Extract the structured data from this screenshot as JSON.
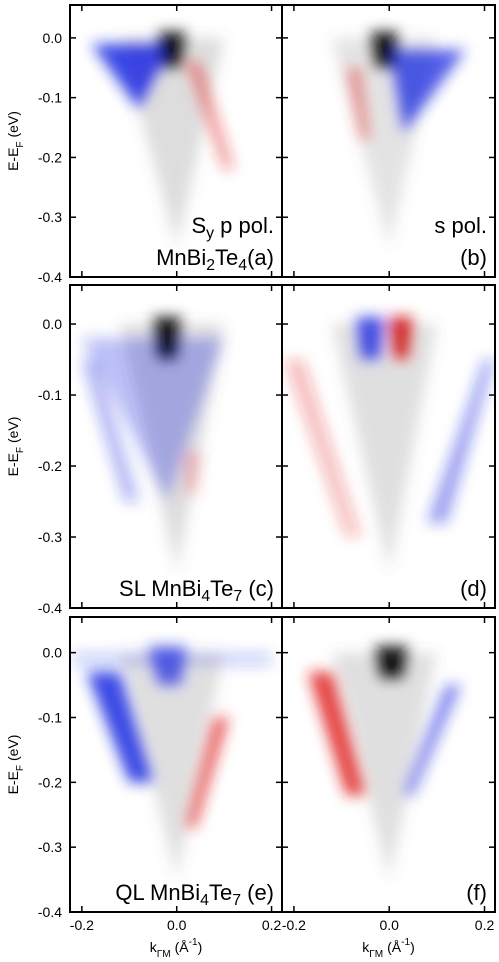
{
  "figure": {
    "ylabel": [
      {
        "text": "E-E"
      },
      {
        "sub": "F"
      },
      {
        "text": " (eV)"
      }
    ],
    "xlabel": [
      {
        "text": "k"
      },
      {
        "sub": "ΓM"
      },
      {
        "text": " (Å"
      },
      {
        "sup": "-1"
      },
      {
        "text": ")"
      }
    ],
    "ylim": [
      0.055,
      -0.4
    ],
    "yticks": [
      {
        "value": 0,
        "label": "0.0"
      },
      -0.1,
      -0.2,
      -0.3,
      -0.4
    ],
    "xlim": [
      -0.225,
      0.222
    ],
    "xticks": [
      -0.2,
      {
        "value": 0,
        "label": "0.0"
      },
      0.2
    ],
    "panels": [
      {
        "lines": [
          [
            {
              "text": "S"
            },
            {
              "sub": "y"
            },
            {
              "text": " p pol."
            }
          ],
          [
            {
              "text": "MnBi"
            },
            {
              "sub": "2"
            },
            {
              "text": "Te"
            },
            {
              "sub": "4"
            },
            {
              "text": "(a)"
            }
          ]
        ]
      },
      {
        "lines": [
          [
            {
              "text": "s pol."
            }
          ],
          [
            {
              "text": "(b)"
            }
          ]
        ]
      },
      {
        "lines": [
          [
            {
              "text": "SL MnBi"
            },
            {
              "sub": "4"
            },
            {
              "text": "Te"
            },
            {
              "sub": "7"
            },
            {
              "text": " (c)"
            }
          ]
        ]
      },
      {
        "lines": [
          [
            {
              "text": "(d)"
            }
          ]
        ]
      },
      {
        "lines": [
          [
            {
              "text": "QL MnBi"
            },
            {
              "sub": "4"
            },
            {
              "text": "Te"
            },
            {
              "sub": "7"
            },
            {
              "text": " (e)"
            }
          ]
        ]
      },
      {
        "lines": [
          [
            {
              "text": "(f)"
            }
          ]
        ]
      }
    ]
  }
}
